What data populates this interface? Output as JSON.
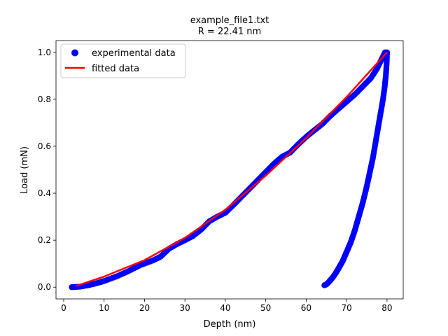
{
  "chart_data": {
    "type": "scatter",
    "title": "example_file1.txt",
    "subtitle": "R = 22.41 nm",
    "xlabel": "Depth (nm)",
    "ylabel": "Load (mN)",
    "xlim": [
      -1.9,
      84.0
    ],
    "ylim": [
      -0.05,
      1.05
    ],
    "xticks": [
      0,
      10,
      20,
      30,
      40,
      50,
      60,
      70,
      80
    ],
    "yticks": [
      0.0,
      0.2,
      0.4,
      0.6,
      0.8,
      1.0
    ],
    "xtick_labels": [
      "0",
      "10",
      "20",
      "30",
      "40",
      "50",
      "60",
      "70",
      "80"
    ],
    "ytick_labels": [
      "0.0",
      "0.2",
      "0.4",
      "0.6",
      "0.8",
      "1.0"
    ],
    "grid": false,
    "legend": "top-left",
    "series": [
      {
        "name": "experimental data",
        "kind": "markers",
        "color": "#0000ff",
        "branches": [
          {
            "label": "loading",
            "x": [
              2.0,
              4.0,
              6.0,
              8.0,
              10.0,
              13.0,
              16.0,
              19.0,
              22.0,
              24.0,
              26.0,
              28.0,
              30.0,
              32.0,
              34.0,
              36.0,
              38.0,
              40.0,
              42.0,
              44.0,
              46.0,
              48.0,
              50.0,
              52.0,
              54.0,
              56.0,
              58.0,
              60.0,
              62.0,
              64.0,
              66.0,
              68.0,
              70.0,
              72.0,
              74.0,
              76.0,
              77.5,
              78.5,
              79.5
            ],
            "y": [
              0.0,
              0.002,
              0.008,
              0.016,
              0.026,
              0.045,
              0.068,
              0.094,
              0.113,
              0.13,
              0.163,
              0.183,
              0.2,
              0.218,
              0.245,
              0.28,
              0.3,
              0.317,
              0.35,
              0.385,
              0.42,
              0.455,
              0.49,
              0.525,
              0.555,
              0.573,
              0.608,
              0.64,
              0.668,
              0.695,
              0.73,
              0.76,
              0.79,
              0.82,
              0.855,
              0.89,
              0.93,
              0.965,
              1.0
            ]
          },
          {
            "label": "unloading",
            "x": [
              80.0,
              79.9,
              79.7,
              79.4,
              79.0,
              78.5,
              78.0,
              77.5,
              77.0,
              76.5,
              76.0,
              75.5,
              75.0,
              74.5,
              74.0,
              73.5,
              73.0,
              72.5,
              72.0,
              71.5,
              71.0,
              70.5,
              70.0,
              69.5,
              69.0,
              68.5,
              68.0,
              67.5,
              67.0,
              66.5,
              66.0,
              65.5,
              65.0,
              64.5
            ],
            "y": [
              1.0,
              0.95,
              0.9,
              0.85,
              0.8,
              0.75,
              0.7,
              0.65,
              0.6,
              0.55,
              0.51,
              0.47,
              0.43,
              0.395,
              0.36,
              0.33,
              0.3,
              0.27,
              0.24,
              0.215,
              0.19,
              0.17,
              0.15,
              0.13,
              0.11,
              0.095,
              0.08,
              0.065,
              0.052,
              0.04,
              0.03,
              0.02,
              0.012,
              0.008
            ]
          }
        ]
      },
      {
        "name": "fitted data",
        "kind": "line",
        "color": "#ff0000",
        "x": [
          3.0,
          10.0,
          20.0,
          30.0,
          40.0,
          50.0,
          60.0,
          70.0,
          80.0
        ],
        "y": [
          0.005,
          0.045,
          0.115,
          0.21,
          0.33,
          0.475,
          0.635,
          0.81,
          1.0
        ]
      }
    ]
  }
}
